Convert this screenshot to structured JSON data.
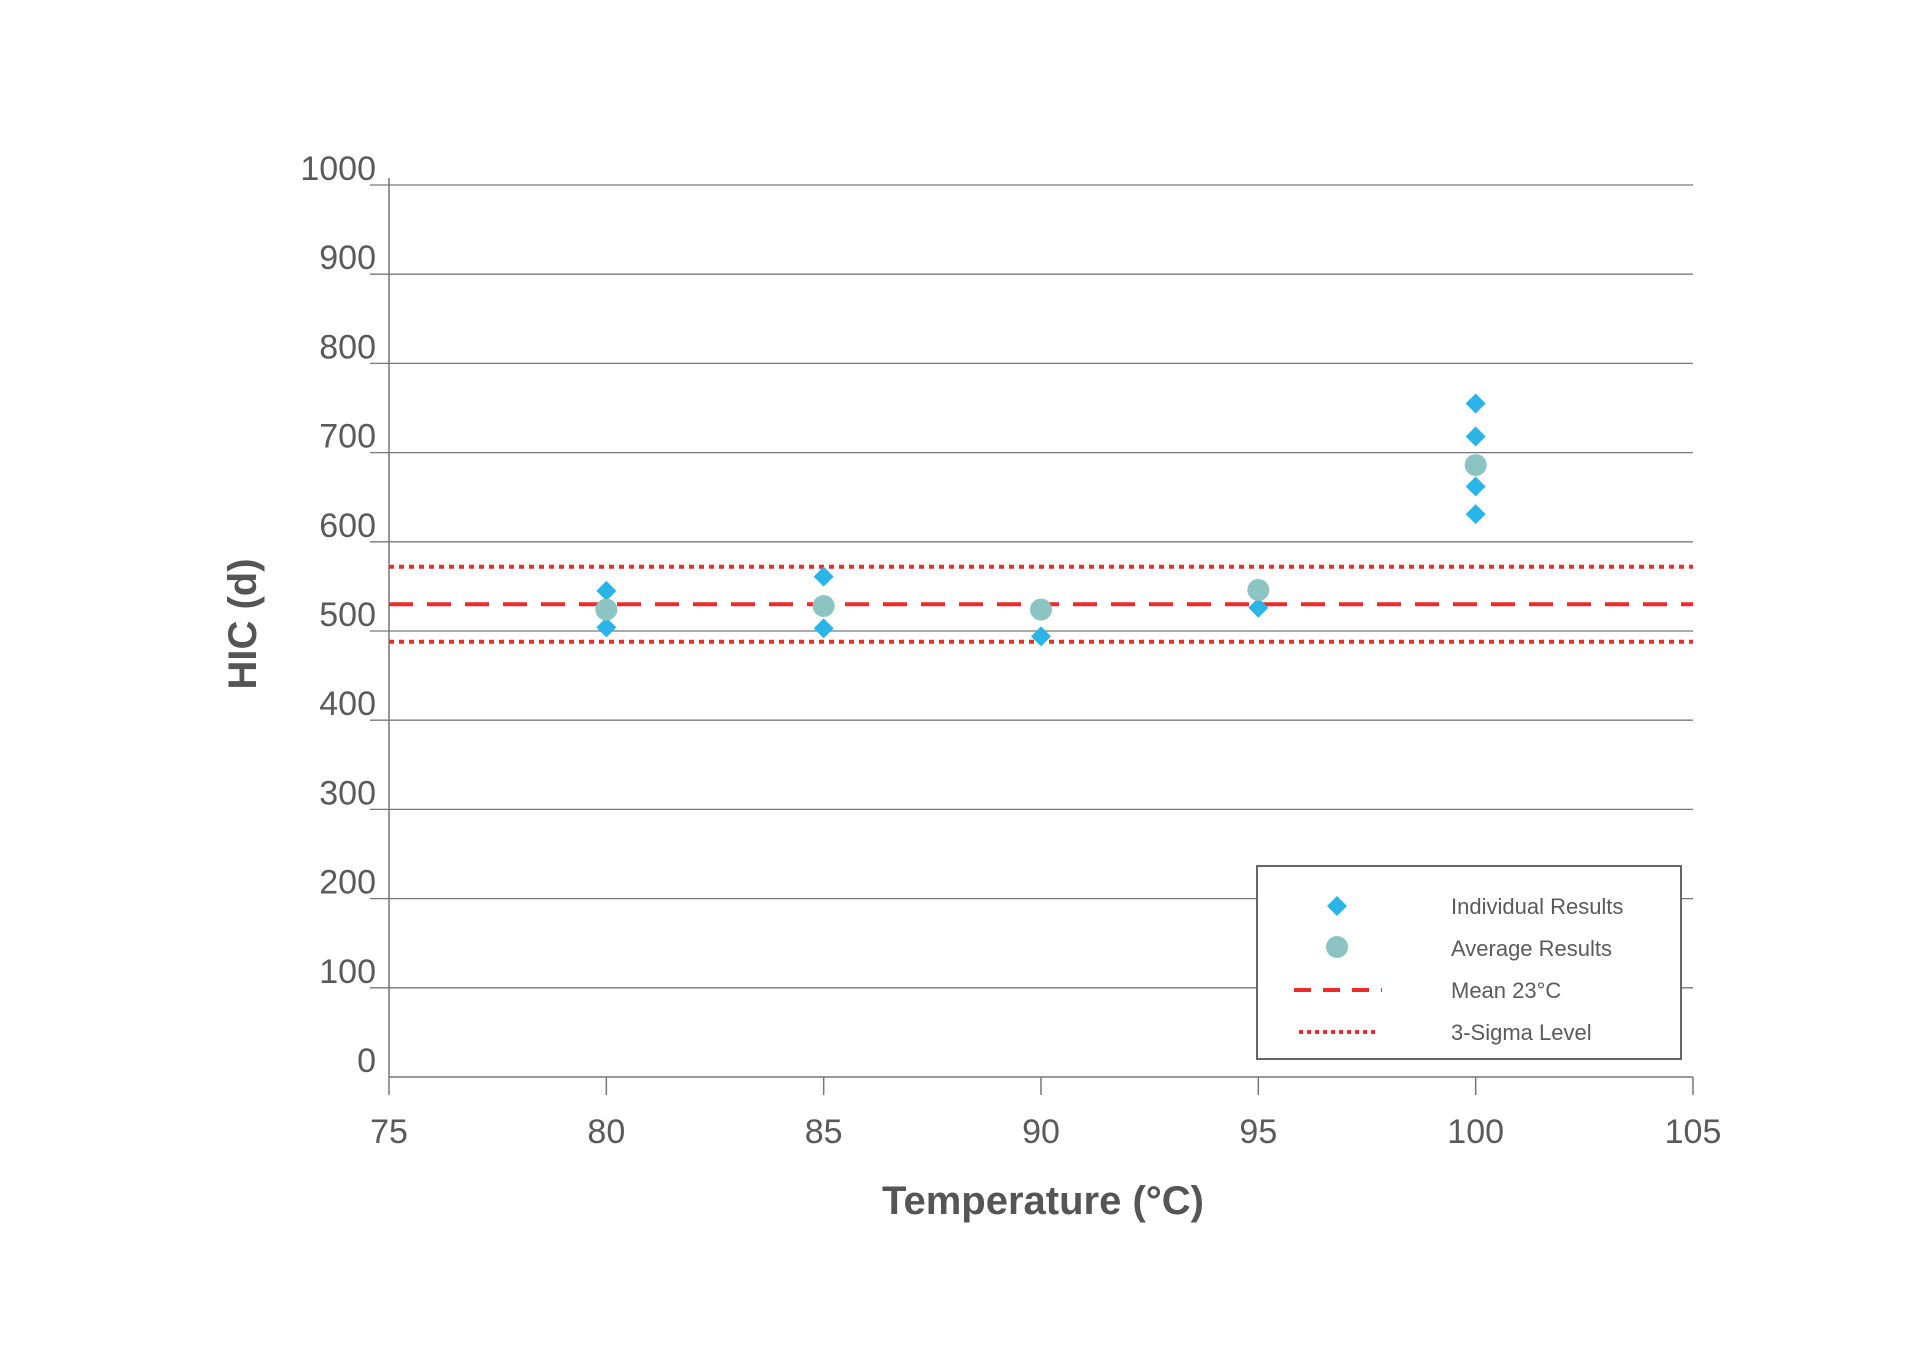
{
  "chart_data": {
    "type": "scatter",
    "title": "",
    "xlabel": "Temperature (°C)",
    "ylabel": "HIC (d)",
    "xlim": [
      75,
      105
    ],
    "ylim": [
      0,
      1000
    ],
    "xticks": [
      75,
      80,
      85,
      90,
      95,
      100,
      105
    ],
    "yticks": [
      0,
      100,
      200,
      300,
      400,
      500,
      600,
      700,
      800,
      900,
      1000
    ],
    "grid": "horizontal",
    "legend_position": "bottom-right",
    "series": [
      {
        "name": "Individual Results",
        "marker": "diamond",
        "color": "#29b5e8",
        "points": [
          {
            "x": 80,
            "y": 545
          },
          {
            "x": 80,
            "y": 504
          },
          {
            "x": 85,
            "y": 561
          },
          {
            "x": 85,
            "y": 503
          },
          {
            "x": 90,
            "y": 494
          },
          {
            "x": 95,
            "y": 526
          },
          {
            "x": 100,
            "y": 755
          },
          {
            "x": 100,
            "y": 718
          },
          {
            "x": 100,
            "y": 662
          },
          {
            "x": 100,
            "y": 631
          }
        ]
      },
      {
        "name": "Average Results",
        "marker": "circle",
        "color": "#8cc4c4",
        "points": [
          {
            "x": 80,
            "y": 524
          },
          {
            "x": 85,
            "y": 528
          },
          {
            "x": 90,
            "y": 524
          },
          {
            "x": 95,
            "y": 546
          },
          {
            "x": 100,
            "y": 686
          }
        ]
      }
    ],
    "reference_lines": [
      {
        "name": "Mean 23°C",
        "style": "dashed",
        "color": "#ee2a2a",
        "y": 530
      },
      {
        "name": "3-Sigma Level",
        "style": "dotted",
        "color": "#ee2a2a",
        "y": 572,
        "show_in_legend": true
      },
      {
        "name": "3-Sigma Level",
        "style": "dotted",
        "color": "#ee2a2a",
        "y": 488,
        "show_in_legend": false
      }
    ]
  }
}
